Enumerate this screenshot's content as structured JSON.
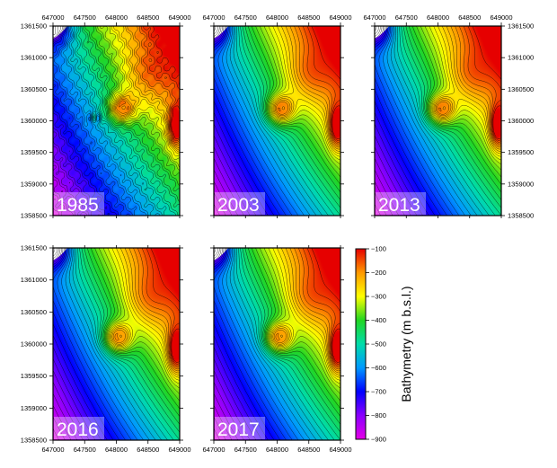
{
  "map_axes": {
    "x_ticks": [
      647000,
      647500,
      648000,
      648500,
      649000
    ],
    "x_tick_labels": [
      "647000",
      "647500",
      "648000",
      "648500",
      "649000"
    ],
    "y_ticks": [
      1358500,
      1359000,
      1359500,
      1360000,
      1360500,
      1361000,
      1361500
    ],
    "y_tick_labels": [
      "1358500",
      "1359000",
      "1359500",
      "1360000",
      "1360500",
      "1361000",
      "1361500"
    ],
    "x_range": [
      647000,
      649000
    ],
    "y_range": [
      1358500,
      1361500
    ]
  },
  "panels": [
    {
      "year": "1985",
      "summit_depth": -180,
      "summit_x": 648080,
      "summit_y": 1360200,
      "rough": true
    },
    {
      "year": "2003",
      "summit_depth": -170,
      "summit_x": 648050,
      "summit_y": 1360180,
      "rough": false
    },
    {
      "year": "2013",
      "summit_depth": -170,
      "summit_x": 648050,
      "summit_y": 1360180,
      "rough": false
    },
    {
      "year": "2016",
      "summit_depth": -165,
      "summit_x": 648020,
      "summit_y": 1360100,
      "rough": false
    },
    {
      "year": "2017",
      "summit_depth": -165,
      "summit_x": 648020,
      "summit_y": 1360100,
      "rough": false
    }
  ],
  "colorbar": {
    "title": "Bathymetry (m b.s.l.)",
    "min": -900,
    "max": -100,
    "ticks": [
      -100,
      -200,
      -300,
      -400,
      -500,
      -600,
      -700,
      -800,
      -900
    ],
    "tick_labels": [
      "−100",
      "−200",
      "−300",
      "−400",
      "−500",
      "−600",
      "−700",
      "−800",
      "−900"
    ],
    "stops": [
      {
        "value": -900,
        "color": "#e600e6"
      },
      {
        "value": -800,
        "color": "#8a00ff"
      },
      {
        "value": -700,
        "color": "#0000ff"
      },
      {
        "value": -600,
        "color": "#0099ff"
      },
      {
        "value": -500,
        "color": "#00dcaa"
      },
      {
        "value": -400,
        "color": "#22d622"
      },
      {
        "value": -300,
        "color": "#ffff00"
      },
      {
        "value": -200,
        "color": "#ff9900"
      },
      {
        "value": -100,
        "color": "#e60000"
      }
    ]
  }
}
